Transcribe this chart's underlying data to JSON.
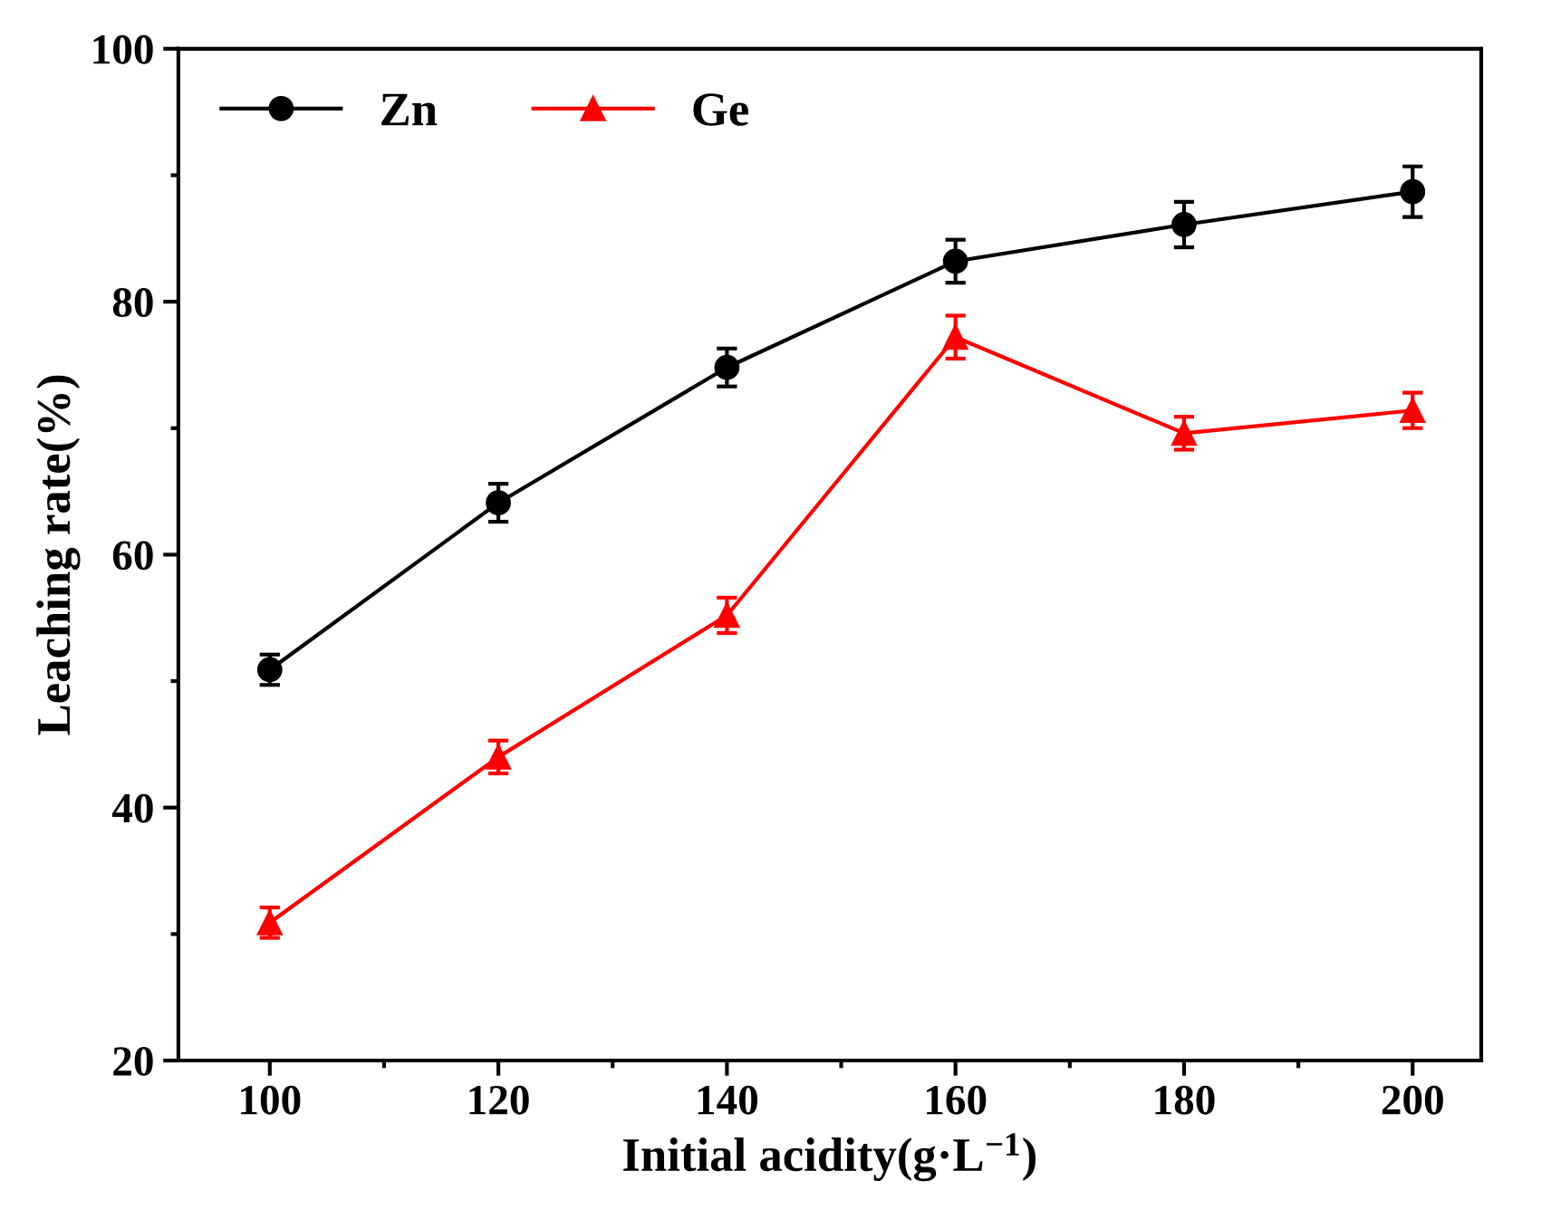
{
  "chart_data": {
    "type": "line",
    "xlabel": "Initial acidity(g·L$^{−1}$)",
    "ylabel": "Leaching rate(%)",
    "x": [
      100,
      120,
      140,
      160,
      180,
      200
    ],
    "series": [
      {
        "name": "Zn",
        "color": "#000000",
        "marker": "circle",
        "values": [
          50.9,
          64.1,
          74.8,
          83.2,
          86.1,
          88.7
        ],
        "errors": [
          1.2,
          1.5,
          1.5,
          1.7,
          1.8,
          2.0
        ]
      },
      {
        "name": "Ge",
        "color": "#ff0000",
        "marker": "triangle",
        "values": [
          30.9,
          44.0,
          55.2,
          77.2,
          69.6,
          71.4
        ],
        "errors": [
          1.2,
          1.3,
          1.4,
          1.7,
          1.3,
          1.4
        ]
      }
    ],
    "xlim": [
      92,
      206
    ],
    "xticks": [
      100,
      120,
      140,
      160,
      180,
      200
    ],
    "ylim": [
      20,
      100
    ],
    "yticks": [
      20,
      40,
      60,
      80,
      100
    ],
    "grid": false,
    "legend": "top left",
    "line_style": "solid"
  }
}
